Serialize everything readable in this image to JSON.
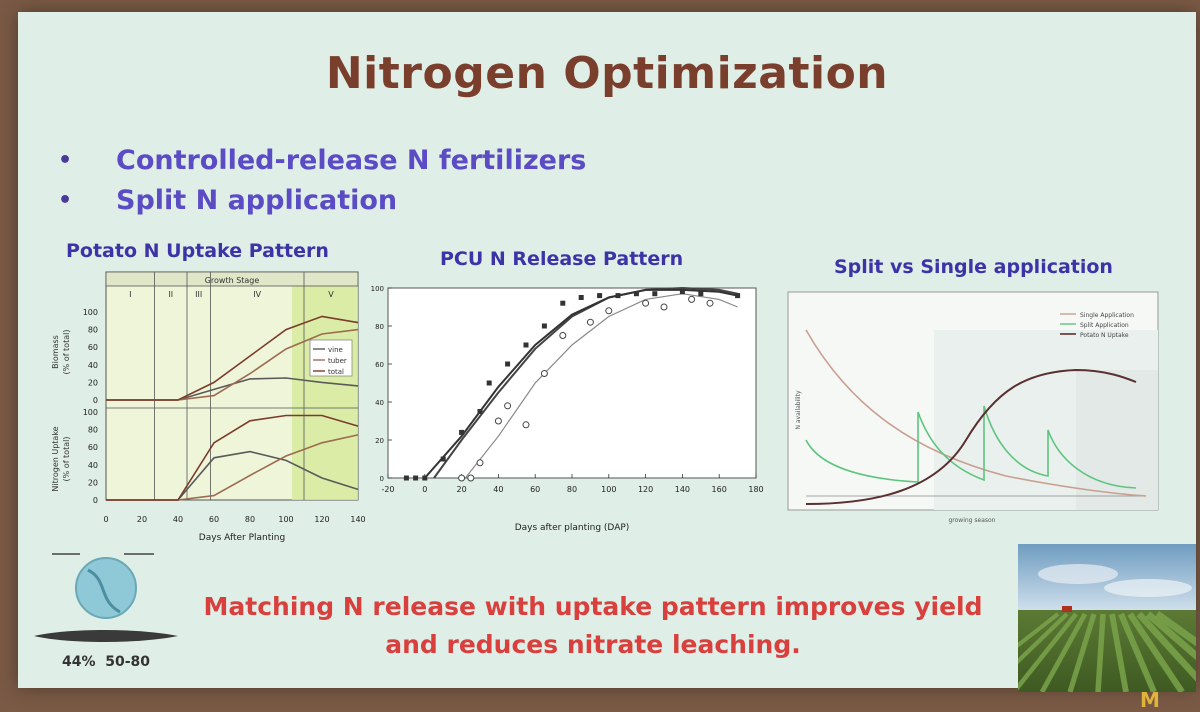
{
  "slide": {
    "title": "Nitrogen Optimization",
    "bullets": [
      "Controlled-release N fertilizers",
      "Split N application"
    ],
    "bullet_marker": "•",
    "caption": [
      "Matching N release with uptake pattern improves yield",
      "and reduces nitrate leaching."
    ],
    "stats": [
      "44%",
      "50-80"
    ],
    "brand_mark": "M"
  },
  "panels": {
    "uptake": {
      "title": "Potato N Uptake Pattern",
      "growth_stage_label": "Growth Stage",
      "stages": [
        "I",
        "II",
        "III",
        "IV",
        "V"
      ],
      "top_ylabel": [
        "Biomass",
        "(% of total)"
      ],
      "bottom_ylabel": [
        "Nitrogen Uptake",
        "(% of total)"
      ],
      "xlabel": "Days After Planting",
      "legend": [
        "vine",
        "tuber",
        "total"
      ]
    },
    "pcu": {
      "title": "PCU N Release Pattern",
      "xlabel": "Days after planting (DAP)"
    },
    "split": {
      "title": "Split vs Single application",
      "legend": [
        "Single Application",
        "Split Application",
        "Potato N Uptake"
      ],
      "ylabel": "N availability",
      "xlabel": "growing season"
    }
  },
  "chart_data": [
    {
      "type": "line",
      "title": "Potato N Uptake Pattern",
      "xlabel": "Days After Planting",
      "ylabel": "Biomass (% of total)",
      "xlim": [
        0,
        140
      ],
      "ylim": [
        0,
        100
      ],
      "x_ticks": [
        0,
        20,
        40,
        60,
        80,
        100,
        120,
        140
      ],
      "y_ticks": [
        0,
        20,
        40,
        60,
        80,
        100
      ],
      "series": [
        {
          "name": "vine",
          "x": [
            0,
            40,
            60,
            80,
            100,
            120,
            140
          ],
          "y": [
            0,
            0,
            12,
            24,
            25,
            20,
            16
          ]
        },
        {
          "name": "tuber",
          "x": [
            0,
            40,
            60,
            80,
            100,
            120,
            140
          ],
          "y": [
            0,
            0,
            5,
            30,
            58,
            75,
            80
          ]
        },
        {
          "name": "total",
          "x": [
            0,
            40,
            60,
            80,
            100,
            120,
            140
          ],
          "y": [
            0,
            0,
            20,
            50,
            80,
            95,
            88
          ]
        }
      ]
    },
    {
      "type": "line",
      "title": "Potato N Uptake Pattern",
      "xlabel": "Days After Planting",
      "ylabel": "Nitrogen Uptake (% of total)",
      "xlim": [
        0,
        140
      ],
      "ylim": [
        0,
        100
      ],
      "x_ticks": [
        0,
        20,
        40,
        60,
        80,
        100,
        120,
        140
      ],
      "y_ticks": [
        0,
        20,
        40,
        60,
        80,
        100
      ],
      "series": [
        {
          "name": "vine",
          "x": [
            0,
            40,
            60,
            80,
            100,
            120,
            140
          ],
          "y": [
            0,
            0,
            48,
            55,
            45,
            25,
            12
          ]
        },
        {
          "name": "tuber",
          "x": [
            0,
            40,
            60,
            80,
            100,
            120,
            140
          ],
          "y": [
            0,
            0,
            5,
            28,
            50,
            65,
            74
          ]
        },
        {
          "name": "total",
          "x": [
            0,
            40,
            60,
            80,
            100,
            120,
            140
          ],
          "y": [
            0,
            0,
            65,
            90,
            96,
            96,
            84
          ]
        }
      ]
    },
    {
      "type": "scatter",
      "title": "PCU N Release Pattern",
      "xlabel": "Days after planting (DAP)",
      "xlim": [
        -20,
        180
      ],
      "ylim": [
        0,
        100
      ],
      "x_ticks": [
        -20,
        0,
        20,
        40,
        60,
        80,
        100,
        120,
        140,
        160,
        180
      ],
      "y_ticks": [
        0,
        20,
        40,
        60,
        80,
        100
      ],
      "series": [
        {
          "x": [
            -10,
            -5,
            0,
            10,
            20,
            30,
            35,
            45,
            55,
            65,
            75,
            85,
            95,
            105,
            115,
            125,
            140,
            150,
            170
          ],
          "y": [
            0,
            0,
            0,
            10,
            24,
            35,
            50,
            60,
            70,
            80,
            92,
            95,
            96,
            96,
            97,
            97,
            98,
            97,
            96
          ]
        },
        {
          "x": [
            20,
            25,
            30,
            40,
            45,
            55,
            65,
            75,
            90,
            100,
            120,
            130,
            145,
            155
          ],
          "y": [
            0,
            0,
            8,
            30,
            38,
            28,
            55,
            75,
            82,
            88,
            92,
            90,
            94,
            92
          ]
        }
      ],
      "curves": [
        {
          "x": [
            5,
            20,
            40,
            60,
            80,
            100,
            120,
            140,
            160,
            170
          ],
          "y": [
            0,
            20,
            45,
            68,
            85,
            95,
            99,
            100,
            99,
            97
          ]
        },
        {
          "x": [
            0,
            20,
            40,
            60,
            80,
            100,
            120,
            140,
            160,
            170
          ],
          "y": [
            0,
            22,
            48,
            70,
            86,
            95,
            99,
            99,
            98,
            96
          ]
        },
        {
          "x": [
            22,
            40,
            60,
            80,
            100,
            120,
            140,
            160,
            170
          ],
          "y": [
            0,
            22,
            50,
            70,
            85,
            94,
            97,
            94,
            90
          ]
        }
      ]
    },
    {
      "type": "line",
      "title": "Split vs Single application",
      "xlabel": "growing season",
      "ylabel": "N availability",
      "series": [
        {
          "name": "Single Application"
        },
        {
          "name": "Split Application"
        },
        {
          "name": "Potato N Uptake"
        }
      ]
    }
  ],
  "colors": {
    "title": "#7a3e2c",
    "bullet_text": "#5b4bc4",
    "panel_title": "#3b33a7",
    "caption": "#d9403d",
    "vine": "#5a5a5a",
    "tuber": "#9c6b50",
    "total": "#7b3b2c",
    "split_green": "#5ec57f",
    "single_tan": "#c8a090",
    "uptake_dark": "#5a3030"
  }
}
